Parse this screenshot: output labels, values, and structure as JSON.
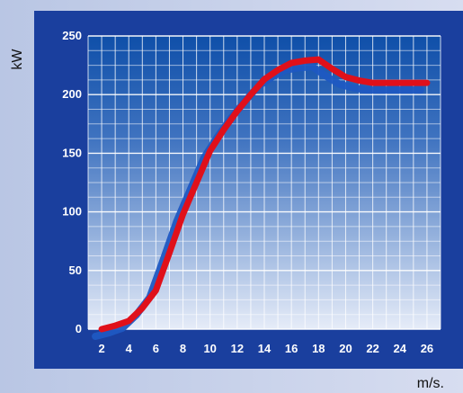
{
  "chart_data": {
    "type": "line",
    "title": "",
    "xlabel": "m/s.",
    "ylabel": "kW",
    "x": [
      2,
      3,
      4,
      5,
      6,
      7,
      8,
      9,
      10,
      11,
      12,
      13,
      14,
      15,
      16,
      17,
      18,
      19,
      20,
      21,
      22,
      23,
      24,
      25,
      26
    ],
    "series": [
      {
        "values": [
          0,
          3,
          7,
          18,
          33,
          65,
          98,
          125,
          152,
          170,
          186,
          200,
          213,
          221,
          227,
          229,
          230,
          222,
          215,
          212,
          210,
          210,
          210,
          210,
          210
        ],
        "color": "#e0101a"
      }
    ],
    "xticks": [
      2,
      4,
      6,
      8,
      10,
      12,
      14,
      16,
      18,
      20,
      22,
      24,
      26
    ],
    "yticks": [
      0,
      50,
      100,
      150,
      200,
      250
    ],
    "xlim": [
      1,
      27
    ],
    "ylim": [
      0,
      250
    ],
    "grid": true,
    "colors": {
      "frame": "#1a3f9e",
      "plot_top": "#0f4fa9",
      "plot_bottom": "#e6ecf8",
      "grid": "#ffffff",
      "shadow": "#1f58c2",
      "outer_background": "#b9c6e4"
    }
  }
}
